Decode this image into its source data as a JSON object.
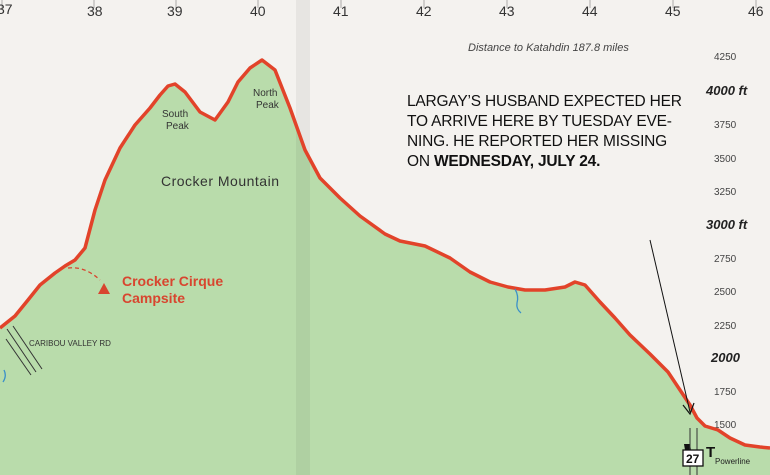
{
  "mile_markers": [
    "37",
    "38",
    "39",
    "40",
    "41",
    "42",
    "43",
    "44",
    "45",
    "46"
  ],
  "distance_label": "Distance to Katahdin 187.8 miles",
  "elevation_labels": [
    "4250",
    "3750",
    "3500",
    "3250",
    "2750",
    "2500",
    "2250",
    "1750",
    "1500"
  ],
  "elevation_major_labels": [
    "4000 ft",
    "3000 ft",
    "2000"
  ],
  "peaks": {
    "south_line1": "South",
    "south_line2": "Peak",
    "north_line1": "North",
    "north_line2": "Peak"
  },
  "mountain_name": "Crocker Mountain",
  "campsite": {
    "line1": "Crocker Cirque",
    "line2": "Campsite"
  },
  "road_label": "CARIBOU VALLEY RD",
  "route_number": "27",
  "powerline_label": "Powerline",
  "callout": {
    "line1": "LARGAY’S HUSBAND EXPECTED HER",
    "line2": "TO ARRIVE HERE BY TUESDAY EVE-",
    "line3": "NING. HE REPORTED HER MISSING",
    "line4_prefix": "ON ",
    "line4_bold": "WEDNESDAY, JULY 24."
  },
  "colors": {
    "terrain": "#b9dcab",
    "profile_line": "#e2432a",
    "campsite": "#d8452f",
    "paper": "#f4f2ef"
  }
}
